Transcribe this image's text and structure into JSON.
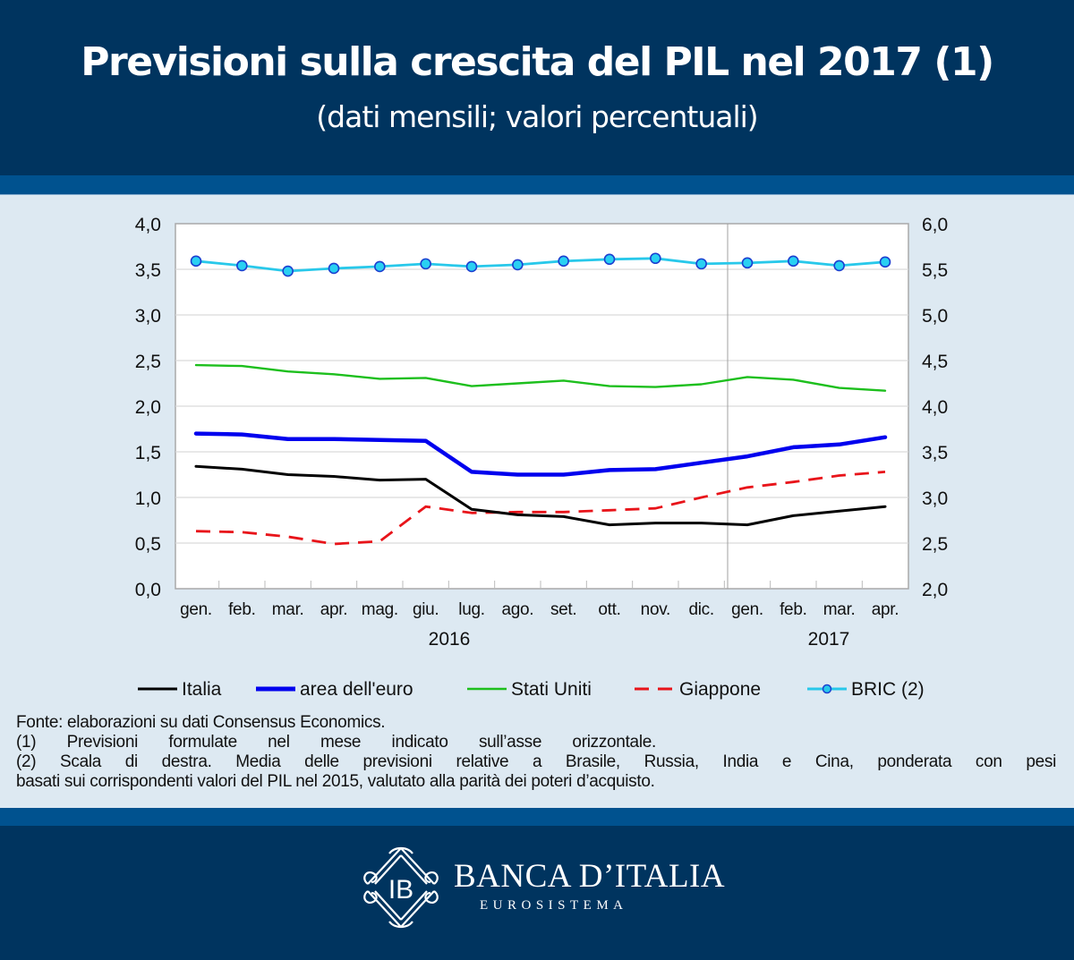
{
  "header": {
    "title": "Previsioni sulla crescita del PIL nel 2017 (1)",
    "subtitle": "(dati mensili; valori percentuali)"
  },
  "chart_data": {
    "type": "line",
    "title": "Previsioni sulla crescita del PIL nel 2017 (1)",
    "subtitle": "(dati mensili; valori percentuali)",
    "categories": [
      "gen.",
      "feb.",
      "mar.",
      "apr.",
      "mag.",
      "giu.",
      "lug.",
      "ago.",
      "set.",
      "ott.",
      "nov.",
      "dic.",
      "gen.",
      "feb.",
      "mar.",
      "apr."
    ],
    "year_labels": [
      "2016",
      "2017"
    ],
    "left_axis": {
      "ylim": [
        0,
        4
      ],
      "ticks": [
        "0,0",
        "0,5",
        "1,0",
        "1,5",
        "2,0",
        "2,5",
        "3,0",
        "3,5",
        "4,0"
      ]
    },
    "right_axis": {
      "ylim": [
        2,
        6
      ],
      "ticks": [
        "2,0",
        "2,5",
        "3,0",
        "3,5",
        "4,0",
        "4,5",
        "5,0",
        "5,5",
        "6,0"
      ]
    },
    "grid": true,
    "legend_position": "bottom",
    "series": [
      {
        "name": "Italia",
        "axis": "left",
        "color": "#000000",
        "style": "solid",
        "values": [
          1.34,
          1.31,
          1.25,
          1.23,
          1.19,
          1.2,
          0.87,
          0.81,
          0.79,
          0.7,
          0.72,
          0.72,
          0.7,
          0.8,
          0.85,
          0.9
        ]
      },
      {
        "name": "area dell'euro",
        "axis": "left",
        "color": "#0000ee",
        "style": "solid-thick",
        "values": [
          1.7,
          1.69,
          1.64,
          1.64,
          1.63,
          1.62,
          1.28,
          1.25,
          1.25,
          1.3,
          1.31,
          1.38,
          1.45,
          1.55,
          1.58,
          1.66
        ]
      },
      {
        "name": "Stati Uniti",
        "axis": "left",
        "color": "#1dbf1d",
        "style": "solid",
        "values": [
          2.45,
          2.44,
          2.38,
          2.35,
          2.3,
          2.31,
          2.22,
          2.25,
          2.28,
          2.22,
          2.21,
          2.24,
          2.32,
          2.29,
          2.2,
          2.17
        ]
      },
      {
        "name": "Giappone",
        "axis": "left",
        "color": "#e8141a",
        "style": "dashed",
        "values": [
          0.63,
          0.62,
          0.57,
          0.49,
          0.52,
          0.9,
          0.83,
          0.84,
          0.84,
          0.86,
          0.88,
          1.0,
          1.11,
          1.17,
          1.24,
          1.28
        ]
      },
      {
        "name": "BRIC (2)",
        "axis": "right",
        "color": "#28c8ea",
        "style": "markers",
        "values": [
          5.59,
          5.54,
          5.48,
          5.51,
          5.53,
          5.56,
          5.53,
          5.55,
          5.59,
          5.61,
          5.62,
          5.56,
          5.57,
          5.59,
          5.54,
          5.58
        ]
      }
    ]
  },
  "notes": {
    "source": "Fonte: elaborazioni su dati Consensus Economics.",
    "note1": "(1) Previsioni formulate nel mese indicato sull’asse orizzontale.",
    "note2a": "(2) Scala di destra. Media delle previsioni relative a Brasile, Russia, India e Cina, ponderata con pesi",
    "note2b": "basati sui corrispondenti valori del PIL nel 2015, valutato alla parità dei poteri d’acquisto."
  },
  "footer": {
    "brand": "BANCA D’ITALIA",
    "tagline": "EUROSISTEMA",
    "logo_monogram": "IB"
  },
  "colors": {
    "navy": "#00345f",
    "band": "#00528f",
    "panel": "#dde9f2"
  }
}
